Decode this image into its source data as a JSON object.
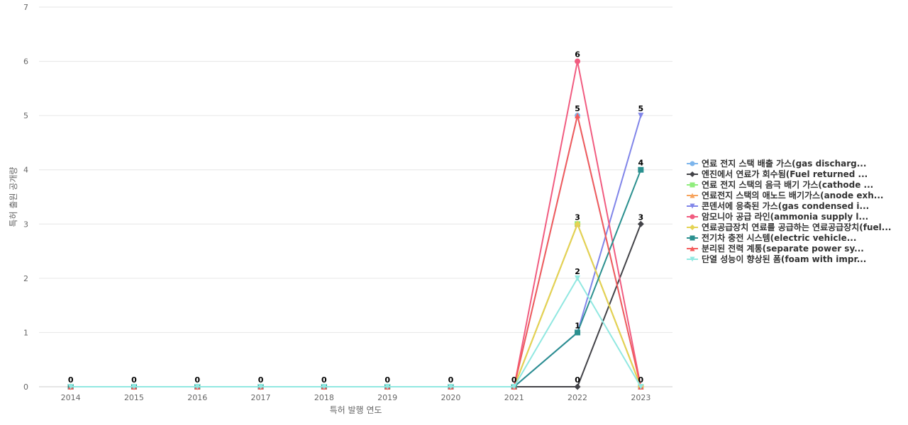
{
  "chart_data": {
    "type": "line",
    "xlabel": "특허 발행 연도",
    "ylabel": "특허 출원 공개량",
    "categories": [
      "2014",
      "2015",
      "2016",
      "2017",
      "2018",
      "2019",
      "2020",
      "2021",
      "2022",
      "2023"
    ],
    "ylim": [
      0,
      7
    ],
    "yticks": [
      0,
      1,
      2,
      3,
      4,
      5,
      6,
      7
    ],
    "grid": true,
    "legend_position": "right",
    "series": [
      {
        "name": "연료 전지 스택 배출 가스(gas discharg...",
        "color": "#7cb5ec",
        "marker": "circle",
        "values": [
          0,
          0,
          0,
          0,
          0,
          0,
          0,
          0,
          5,
          0
        ]
      },
      {
        "name": "엔진에서 연료가 회수됨(Fuel returned ...",
        "color": "#434348",
        "marker": "diamond",
        "values": [
          0,
          0,
          0,
          0,
          0,
          0,
          0,
          0,
          0,
          3
        ]
      },
      {
        "name": "연료 전지 스택의 음극 배기 가스(cathode ...",
        "color": "#90ed7d",
        "marker": "square",
        "values": [
          0,
          0,
          0,
          0,
          0,
          0,
          0,
          0,
          3,
          0
        ]
      },
      {
        "name": "연료전지 스택의 애노드 배기가스(anode exh...",
        "color": "#f7a35c",
        "marker": "triangle",
        "values": [
          0,
          0,
          0,
          0,
          0,
          0,
          0,
          0,
          3,
          0
        ]
      },
      {
        "name": "콘덴서에 응축된 가스(gas condensed i...",
        "color": "#8085e9",
        "marker": "triangle-down",
        "values": [
          0,
          0,
          0,
          0,
          0,
          0,
          0,
          0,
          1,
          5
        ]
      },
      {
        "name": "암모니아 공급 라인(ammonia supply l...",
        "color": "#f15c80",
        "marker": "circle",
        "values": [
          0,
          0,
          0,
          0,
          0,
          0,
          0,
          0,
          6,
          0
        ]
      },
      {
        "name": "연료공급장치 연료를 공급하는 연료공급장치(fuel...",
        "color": "#e4d354",
        "marker": "diamond",
        "values": [
          0,
          0,
          0,
          0,
          0,
          0,
          0,
          0,
          3,
          0
        ]
      },
      {
        "name": "전기차 충전 시스템(electric vehicle...",
        "color": "#2b908f",
        "marker": "square",
        "values": [
          0,
          0,
          0,
          0,
          0,
          0,
          0,
          0,
          1,
          4
        ]
      },
      {
        "name": "분리된 전력 계통(separate power sy...",
        "color": "#f45b5b",
        "marker": "triangle",
        "values": [
          0,
          0,
          0,
          0,
          0,
          0,
          0,
          0,
          5,
          0
        ]
      },
      {
        "name": "단열 성능이 향상된 폼(foam with impr...",
        "color": "#91e8e1",
        "marker": "triangle-down",
        "values": [
          0,
          0,
          0,
          0,
          0,
          0,
          0,
          0,
          2,
          0
        ]
      }
    ],
    "data_labels": [
      {
        "x": "2014",
        "value": 0
      },
      {
        "x": "2015",
        "value": 0
      },
      {
        "x": "2016",
        "value": 0
      },
      {
        "x": "2017",
        "value": 0
      },
      {
        "x": "2018",
        "value": 0
      },
      {
        "x": "2019",
        "value": 0
      },
      {
        "x": "2020",
        "value": 0
      },
      {
        "x": "2021",
        "value": 0
      },
      {
        "x": "2022",
        "value": 6
      },
      {
        "x": "2022",
        "value": 5
      },
      {
        "x": "2022",
        "value": 3
      },
      {
        "x": "2022",
        "value": 2
      },
      {
        "x": "2022",
        "value": 1
      },
      {
        "x": "2022",
        "value": 0
      },
      {
        "x": "2023",
        "value": 5
      },
      {
        "x": "2023",
        "value": 4
      },
      {
        "x": "2023",
        "value": 3
      },
      {
        "x": "2023",
        "value": 0
      }
    ]
  }
}
